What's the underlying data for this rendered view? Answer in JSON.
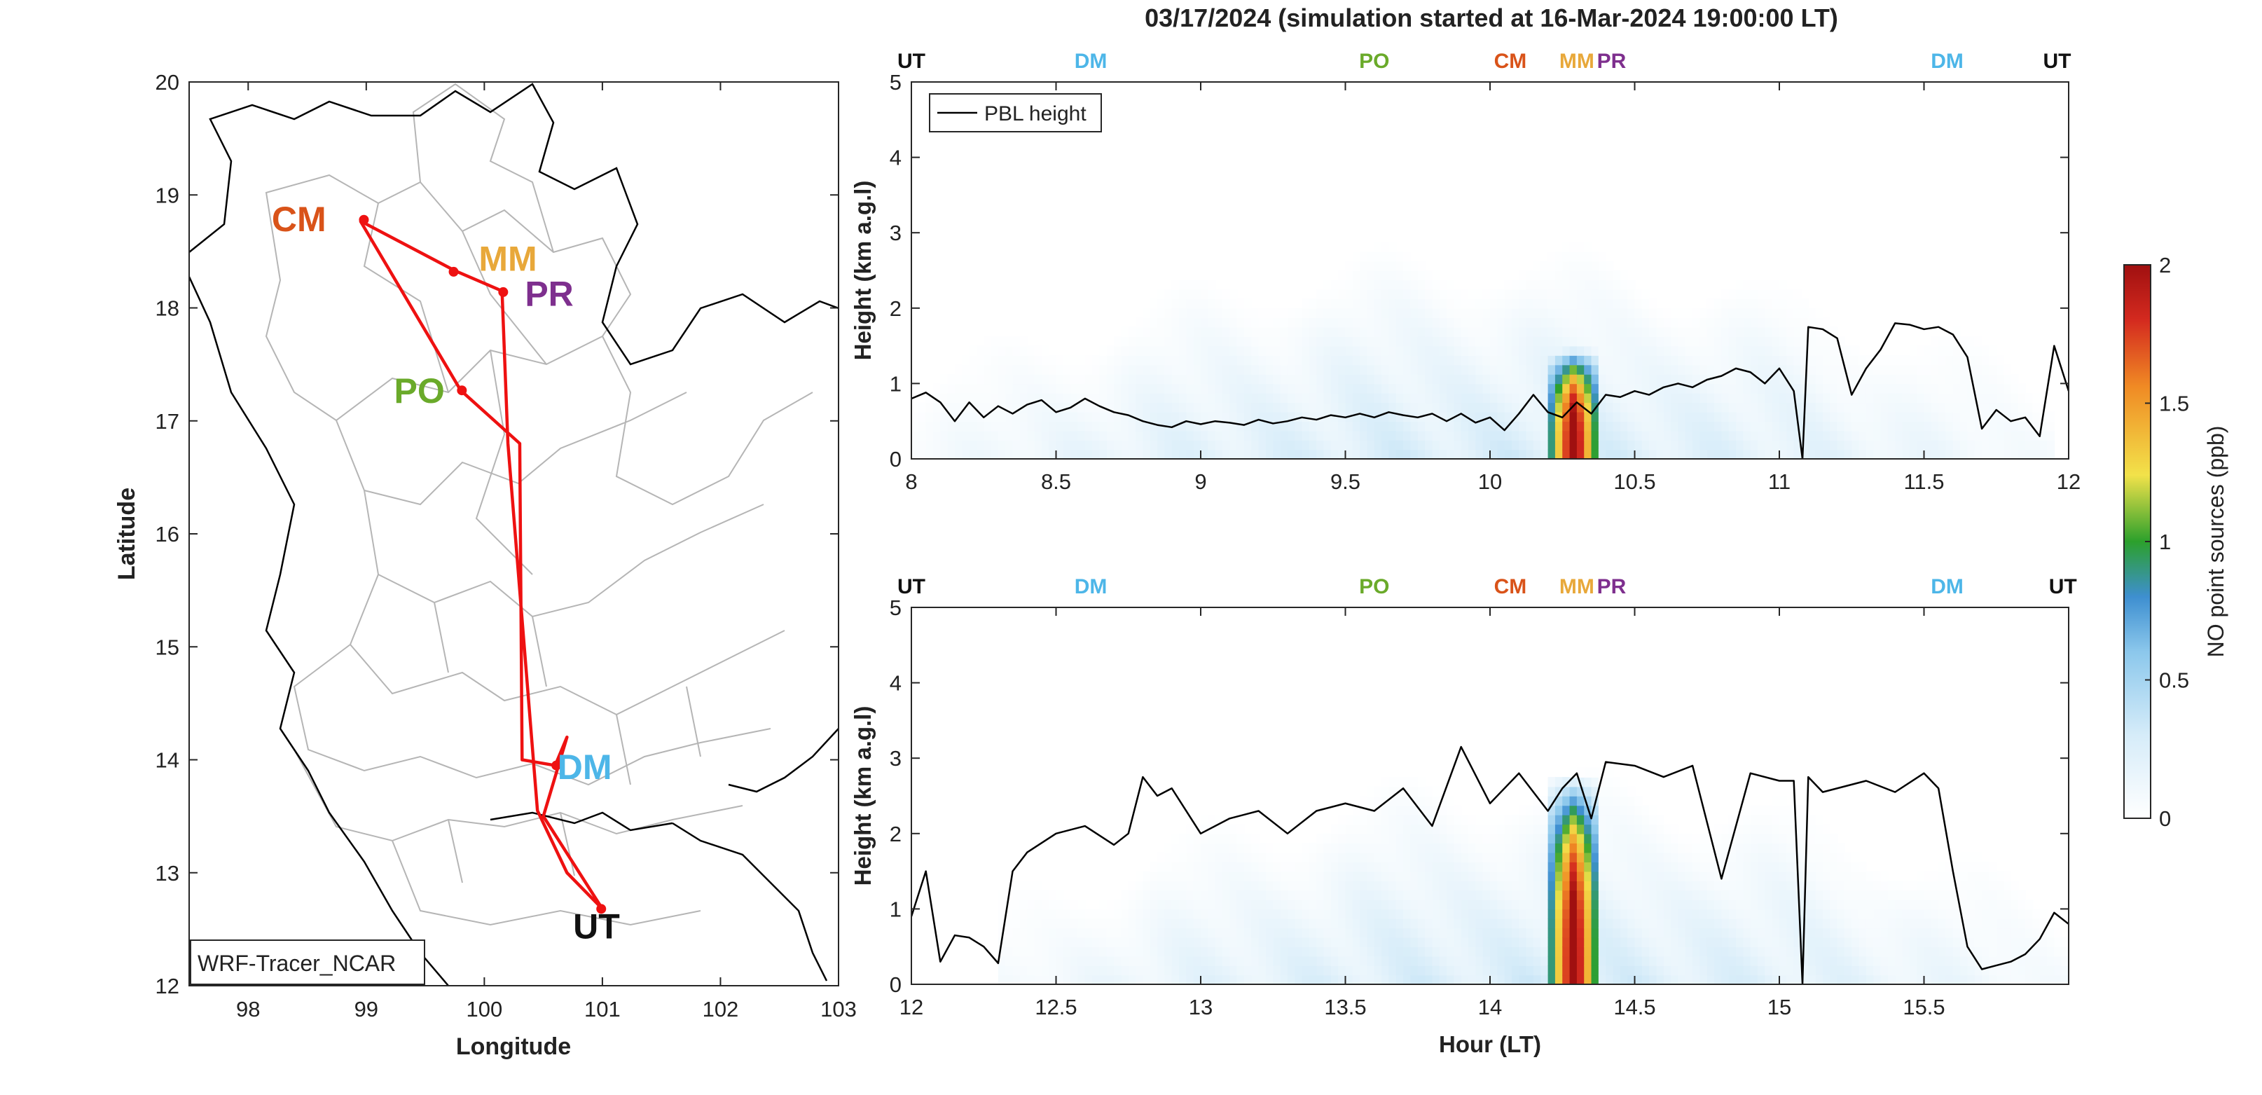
{
  "title": "03/17/2024 (simulation started at 16-Mar-2024 19:00:00 LT)",
  "site_colors": {
    "UT": "#111111",
    "DM": "#4db6e8",
    "PO": "#6aaa2a",
    "CM": "#d95319",
    "MM": "#e8a83a",
    "PR": "#7e2f8e"
  },
  "map": {
    "xlabel": "Longitude",
    "ylabel": "Latitude",
    "xlim": [
      97.5,
      103
    ],
    "ylim": [
      12,
      20
    ],
    "xticks": [
      "98",
      "99",
      "100",
      "101",
      "102",
      "103"
    ],
    "yticks": [
      "12",
      "13",
      "14",
      "15",
      "16",
      "17",
      "18",
      "19",
      "20"
    ],
    "model_label": "WRF-Tracer_NCAR",
    "route_color": "#ee1111",
    "route": [
      [
        98.95,
        18.77
      ],
      [
        99.8,
        17.27
      ],
      [
        100.3,
        16.8
      ],
      [
        100.32,
        14.0
      ],
      [
        100.6,
        13.95
      ],
      [
        100.7,
        14.2
      ],
      [
        100.5,
        13.5
      ],
      [
        101.0,
        12.68
      ],
      [
        100.7,
        13.0
      ],
      [
        100.45,
        13.55
      ],
      [
        100.2,
        16.8
      ],
      [
        100.15,
        18.15
      ],
      [
        99.75,
        18.33
      ],
      [
        98.95,
        18.77
      ]
    ],
    "sites": [
      {
        "code": "CM",
        "lon": 98.98,
        "lat": 18.78,
        "label_lon": 98.43,
        "label_lat": 18.79
      },
      {
        "code": "MM",
        "lon": 99.74,
        "lat": 18.32,
        "label_lon": 100.2,
        "label_lat": 18.44
      },
      {
        "code": "PR",
        "lon": 100.16,
        "lat": 18.14,
        "label_lon": 100.55,
        "label_lat": 18.13
      },
      {
        "code": "PO",
        "lon": 99.81,
        "lat": 17.27,
        "label_lon": 99.45,
        "label_lat": 17.27
      },
      {
        "code": "DM",
        "lon": 100.61,
        "lat": 13.95,
        "label_lon": 100.85,
        "label_lat": 13.94
      },
      {
        "code": "UT",
        "lon": 100.99,
        "lat": 12.68,
        "label_lon": 100.95,
        "label_lat": 12.53
      }
    ]
  },
  "colorbar": {
    "label": "NO point sources (ppb)",
    "ticks": [
      "0",
      "0.5",
      "1",
      "1.5",
      "2"
    ],
    "range": [
      0,
      2
    ]
  },
  "chart_data": [
    {
      "type": "heatmap",
      "xlim": [
        8,
        12
      ],
      "ylim": [
        0,
        5
      ],
      "xticks": [
        "8",
        "8.5",
        "9",
        "9.5",
        "10",
        "10.5",
        "11",
        "11.5",
        "12"
      ],
      "yticks": [
        "0",
        "1",
        "2",
        "3",
        "4",
        "5"
      ],
      "xlabel": "",
      "ylabel": "Height (km a.g.l)",
      "legend": {
        "entry": "PBL height",
        "position": "top-left"
      },
      "sites_top": [
        {
          "code": "UT",
          "x": 8.0
        },
        {
          "code": "DM",
          "x": 8.62
        },
        {
          "code": "PO",
          "x": 9.6
        },
        {
          "code": "CM",
          "x": 10.07
        },
        {
          "code": "MM",
          "x": 10.3
        },
        {
          "code": "PR",
          "x": 10.42
        },
        {
          "code": "DM",
          "x": 11.58
        },
        {
          "code": "UT",
          "x": 11.96
        }
      ],
      "pbl_height": {
        "x": [
          8.0,
          8.05,
          8.1,
          8.15,
          8.2,
          8.25,
          8.3,
          8.35,
          8.4,
          8.45,
          8.5,
          8.55,
          8.6,
          8.65,
          8.7,
          8.75,
          8.8,
          8.85,
          8.9,
          8.95,
          9.0,
          9.05,
          9.1,
          9.15,
          9.2,
          9.25,
          9.3,
          9.35,
          9.4,
          9.45,
          9.5,
          9.55,
          9.6,
          9.65,
          9.7,
          9.75,
          9.8,
          9.85,
          9.9,
          9.95,
          10.0,
          10.05,
          10.1,
          10.15,
          10.2,
          10.25,
          10.3,
          10.35,
          10.4,
          10.45,
          10.5,
          10.55,
          10.6,
          10.65,
          10.7,
          10.75,
          10.8,
          10.85,
          10.9,
          10.95,
          11.0,
          11.05,
          11.08,
          11.1,
          11.15,
          11.2,
          11.25,
          11.3,
          11.35,
          11.4,
          11.45,
          11.5,
          11.55,
          11.6,
          11.65,
          11.7,
          11.75,
          11.8,
          11.85,
          11.9,
          11.95,
          12.0
        ],
        "y": [
          0.8,
          0.88,
          0.75,
          0.5,
          0.75,
          0.55,
          0.7,
          0.6,
          0.72,
          0.78,
          0.62,
          0.68,
          0.8,
          0.7,
          0.62,
          0.58,
          0.5,
          0.45,
          0.42,
          0.5,
          0.46,
          0.5,
          0.48,
          0.45,
          0.52,
          0.47,
          0.5,
          0.55,
          0.52,
          0.58,
          0.55,
          0.6,
          0.55,
          0.62,
          0.58,
          0.55,
          0.6,
          0.5,
          0.6,
          0.48,
          0.55,
          0.38,
          0.6,
          0.85,
          0.62,
          0.55,
          0.75,
          0.6,
          0.85,
          0.82,
          0.9,
          0.85,
          0.95,
          1.0,
          0.95,
          1.05,
          1.1,
          1.2,
          1.15,
          1.0,
          1.2,
          0.9,
          0.0,
          1.75,
          1.72,
          1.6,
          0.85,
          1.2,
          1.45,
          1.8,
          1.78,
          1.72,
          1.75,
          1.65,
          1.35,
          0.4,
          0.65,
          0.5,
          0.55,
          0.3,
          1.5,
          0.9
        ]
      },
      "tracer": {
        "background": {
          "x_range": [
            8.0,
            11.95
          ],
          "max": 0.35
        },
        "plume": {
          "x_range": [
            10.2,
            10.38
          ],
          "top_km": 1.5,
          "max": 2.0
        }
      }
    },
    {
      "type": "heatmap",
      "xlim": [
        12,
        16
      ],
      "ylim": [
        0,
        5
      ],
      "xticks": [
        "12",
        "12.5",
        "13",
        "13.5",
        "14",
        "14.5",
        "15",
        "15.5"
      ],
      "yticks": [
        "0",
        "1",
        "2",
        "3",
        "4",
        "5"
      ],
      "xlabel": "Hour (LT)",
      "ylabel": "Height (km a.g.l)",
      "sites_top": [
        {
          "code": "UT",
          "x": 12.0
        },
        {
          "code": "DM",
          "x": 12.62
        },
        {
          "code": "PO",
          "x": 13.6
        },
        {
          "code": "CM",
          "x": 14.07
        },
        {
          "code": "MM",
          "x": 14.3
        },
        {
          "code": "PR",
          "x": 14.42
        },
        {
          "code": "DM",
          "x": 15.58
        },
        {
          "code": "UT",
          "x": 15.98
        }
      ],
      "pbl_height": {
        "x": [
          12.0,
          12.05,
          12.1,
          12.15,
          12.2,
          12.25,
          12.3,
          12.35,
          12.4,
          12.5,
          12.6,
          12.7,
          12.75,
          12.8,
          12.85,
          12.9,
          13.0,
          13.1,
          13.2,
          13.3,
          13.4,
          13.5,
          13.6,
          13.7,
          13.8,
          13.9,
          14.0,
          14.1,
          14.2,
          14.25,
          14.3,
          14.35,
          14.4,
          14.5,
          14.6,
          14.7,
          14.8,
          14.9,
          15.0,
          15.05,
          15.08,
          15.1,
          15.15,
          15.2,
          15.3,
          15.4,
          15.5,
          15.55,
          15.6,
          15.65,
          15.7,
          15.75,
          15.8,
          15.85,
          15.9,
          15.95,
          16.0
        ],
        "y": [
          0.9,
          1.5,
          0.3,
          0.65,
          0.62,
          0.5,
          0.28,
          1.5,
          1.75,
          2.0,
          2.1,
          1.85,
          2.0,
          2.75,
          2.5,
          2.6,
          2.0,
          2.2,
          2.3,
          2.0,
          2.3,
          2.4,
          2.3,
          2.6,
          2.1,
          3.15,
          2.4,
          2.8,
          2.3,
          2.6,
          2.8,
          2.2,
          2.95,
          2.9,
          2.75,
          2.9,
          1.4,
          2.8,
          2.7,
          2.7,
          0.0,
          2.75,
          2.55,
          2.6,
          2.7,
          2.55,
          2.8,
          2.6,
          1.5,
          0.5,
          0.2,
          0.25,
          0.3,
          0.4,
          0.6,
          0.95,
          0.8
        ]
      },
      "tracer": {
        "background": {
          "x_range": [
            12.3,
            16.0
          ],
          "max": 0.35
        },
        "plume": {
          "x_range": [
            14.2,
            14.38
          ],
          "top_km": 2.8,
          "max": 2.0
        }
      }
    }
  ]
}
